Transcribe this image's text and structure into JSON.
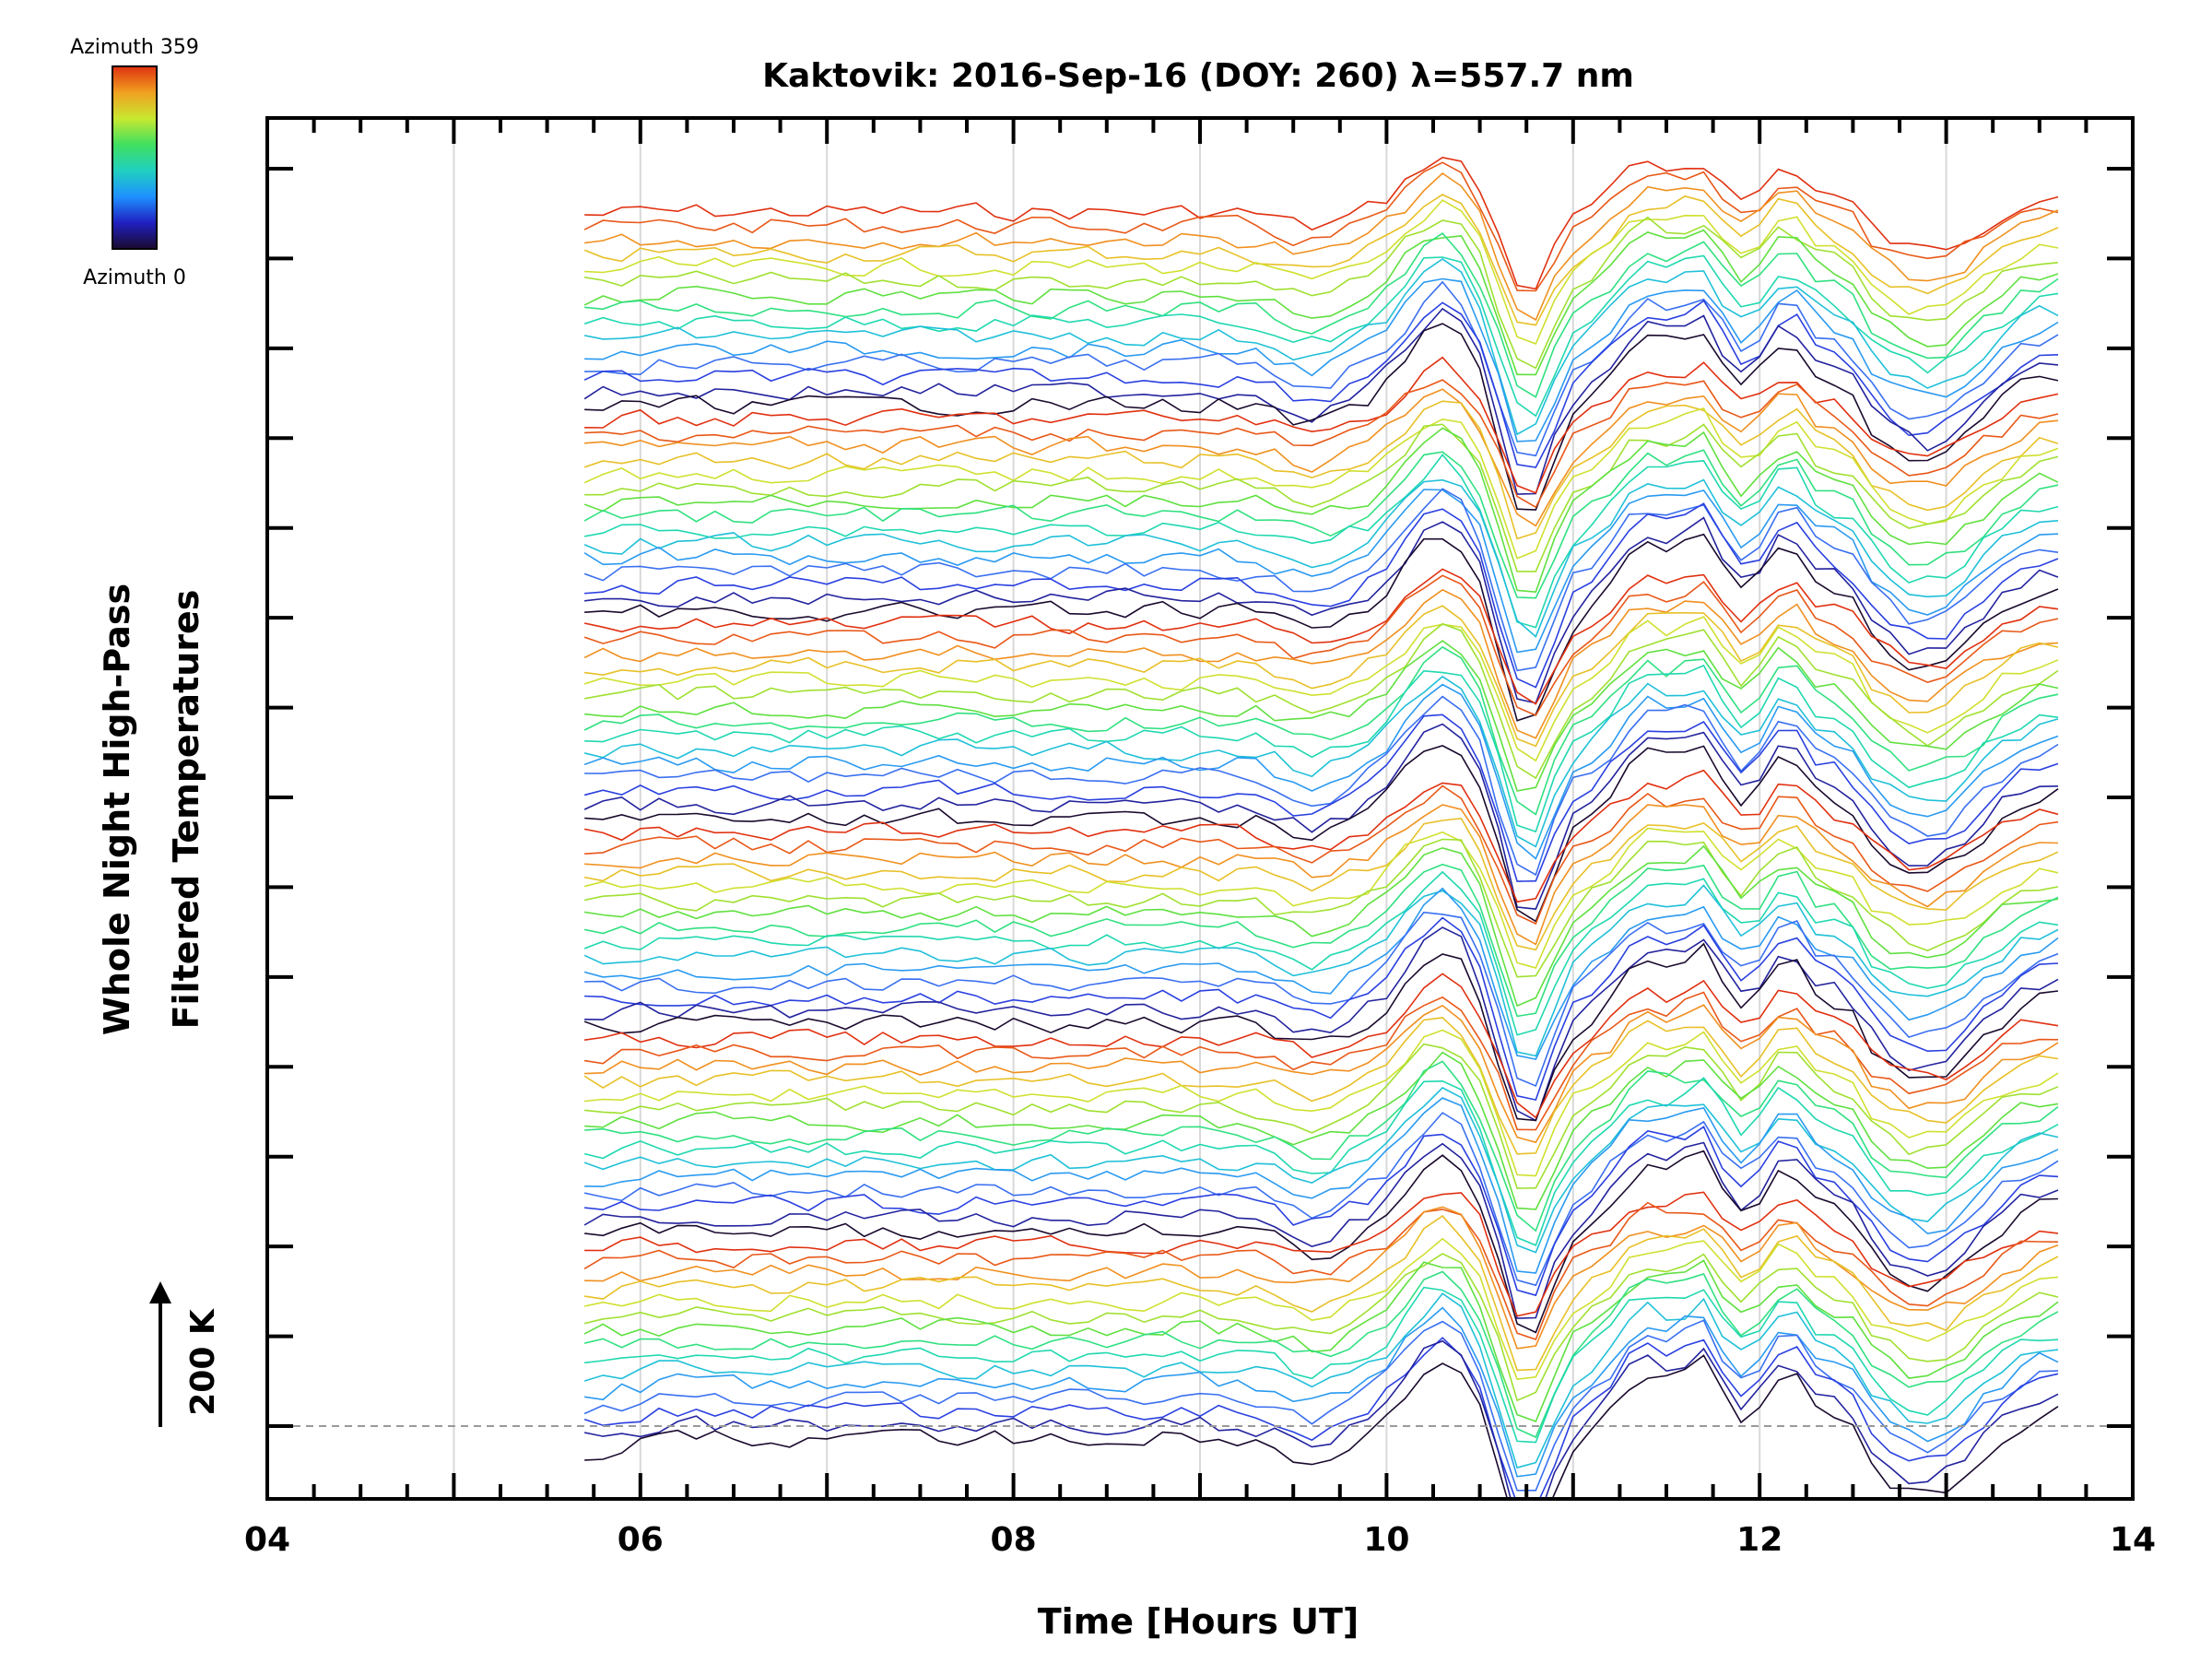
{
  "chart_data": {
    "type": "line",
    "title": "Kaktovik: 2016-Sep-16 (DOY: 260) λ=557.7 nm",
    "xlabel": "Time [Hours UT]",
    "ylabel_line1": "Whole Night High-Pass",
    "ylabel_line2": "Filtered Temperatures",
    "xlim": [
      4,
      14
    ],
    "x_tick_labels": [
      "04",
      "06",
      "08",
      "10",
      "12",
      "14"
    ],
    "x_tick_values": [
      4,
      6,
      8,
      10,
      12,
      14
    ],
    "grid": true,
    "colorbar": {
      "top_label": "Azimuth 359",
      "bottom_label": "Azimuth 0",
      "stops": [
        "#1a0a2e",
        "#2020c0",
        "#1e90ff",
        "#20d0c0",
        "#40e060",
        "#c8e830",
        "#f0a020",
        "#e03010"
      ]
    },
    "scale_bar": {
      "label": "200 K",
      "value_K": 200
    },
    "series_description": "Stacked high-pass filtered temperature traces, one per azimuth, each vertically offset; colored by azimuth",
    "data_start_hour": 5.7,
    "data_end_hour": 13.65,
    "num_series": 90,
    "key_features": [
      {
        "time": 10.3,
        "feature": "positive peak"
      },
      {
        "time": 10.75,
        "feature": "deep minimum"
      },
      {
        "time": 11.4,
        "feature": "peak"
      },
      {
        "time": 11.7,
        "feature": "peak"
      },
      {
        "time": 12.15,
        "feature": "peak"
      },
      {
        "time": 12.9,
        "feature": "broad minimum"
      }
    ]
  }
}
